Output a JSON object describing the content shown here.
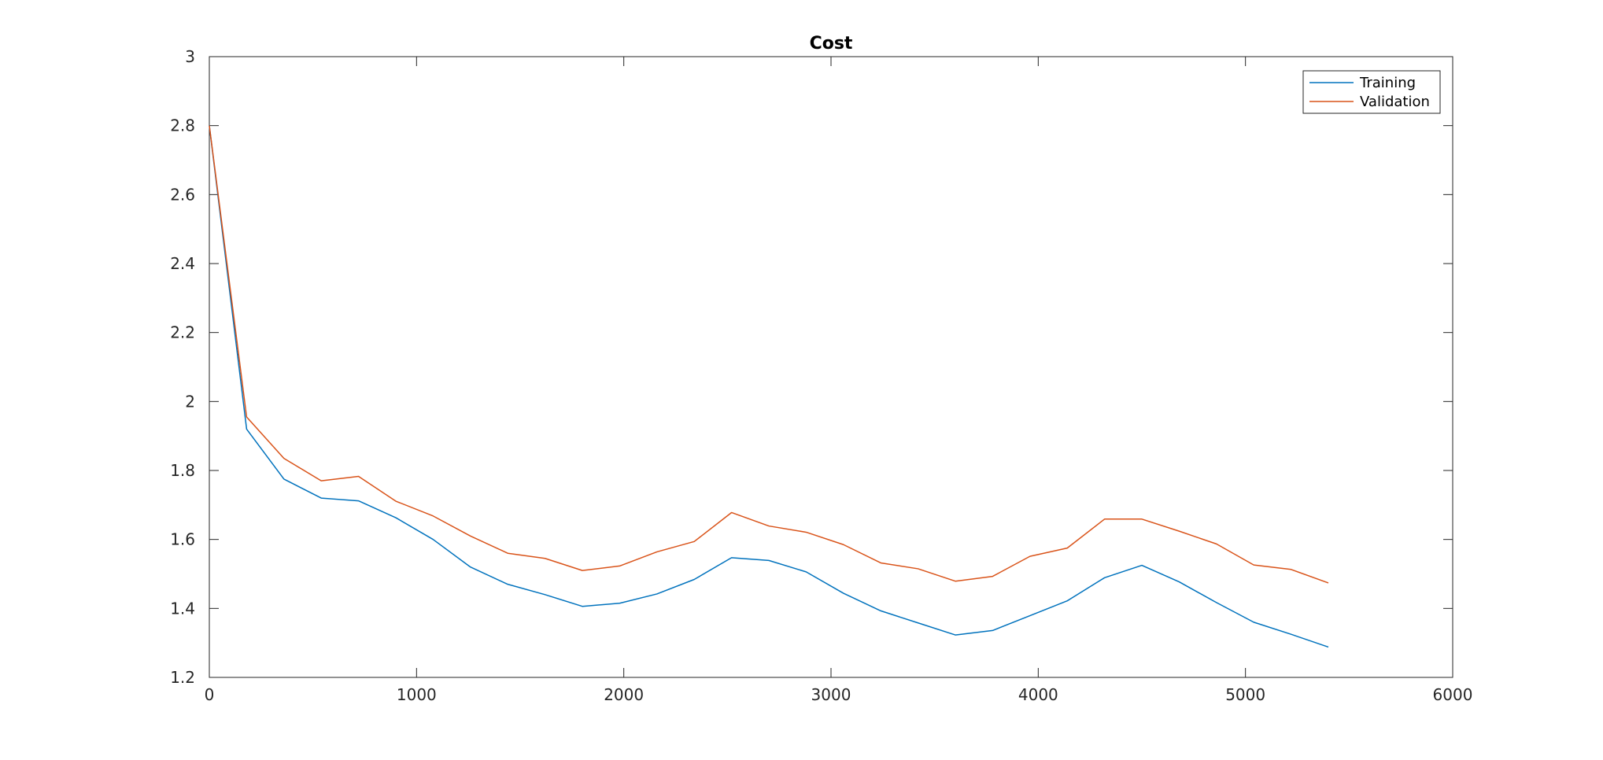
{
  "chart_data": {
    "type": "line",
    "title": "Cost",
    "xlabel": "",
    "ylabel": "",
    "xlim": [
      0,
      6000
    ],
    "ylim": [
      1.2,
      3
    ],
    "xticks": [
      0,
      1000,
      2000,
      3000,
      4000,
      5000,
      6000
    ],
    "xtick_labels": [
      "0",
      "1000",
      "2000",
      "3000",
      "4000",
      "5000",
      "6000"
    ],
    "yticks": [
      1.2,
      1.4,
      1.6,
      1.8,
      2,
      2.2,
      2.4,
      2.6,
      2.8,
      3
    ],
    "ytick_labels": [
      "1.2",
      "1.4",
      "1.6",
      "1.8",
      "2",
      "2.2",
      "2.4",
      "2.6",
      "2.8",
      "3"
    ],
    "grid": false,
    "legend_position": "top-right",
    "x": [
      0,
      180,
      360,
      540,
      720,
      900,
      1080,
      1260,
      1440,
      1620,
      1800,
      1980,
      2160,
      2340,
      2520,
      2700,
      2880,
      3060,
      3240,
      3420,
      3600,
      3780,
      3960,
      4140,
      4320,
      4500,
      4680,
      4860,
      5040,
      5220,
      5400
    ],
    "series": [
      {
        "name": "Training",
        "color": "#0072BD",
        "values": [
          2.8,
          1.92,
          1.775,
          1.72,
          1.712,
          1.663,
          1.6,
          1.52,
          1.47,
          1.44,
          1.406,
          1.415,
          1.442,
          1.484,
          1.547,
          1.539,
          1.506,
          1.444,
          1.393,
          1.358,
          1.323,
          1.336,
          1.379,
          1.422,
          1.489,
          1.525,
          1.477,
          1.417,
          1.36,
          1.325,
          1.288
        ]
      },
      {
        "name": "Validation",
        "color": "#D95319",
        "values": [
          2.8,
          1.955,
          1.835,
          1.77,
          1.783,
          1.711,
          1.668,
          1.61,
          1.56,
          1.545,
          1.51,
          1.523,
          1.564,
          1.594,
          1.678,
          1.639,
          1.621,
          1.585,
          1.532,
          1.515,
          1.479,
          1.493,
          1.551,
          1.575,
          1.659,
          1.659,
          1.624,
          1.587,
          1.526,
          1.513,
          1.474
        ]
      }
    ]
  }
}
